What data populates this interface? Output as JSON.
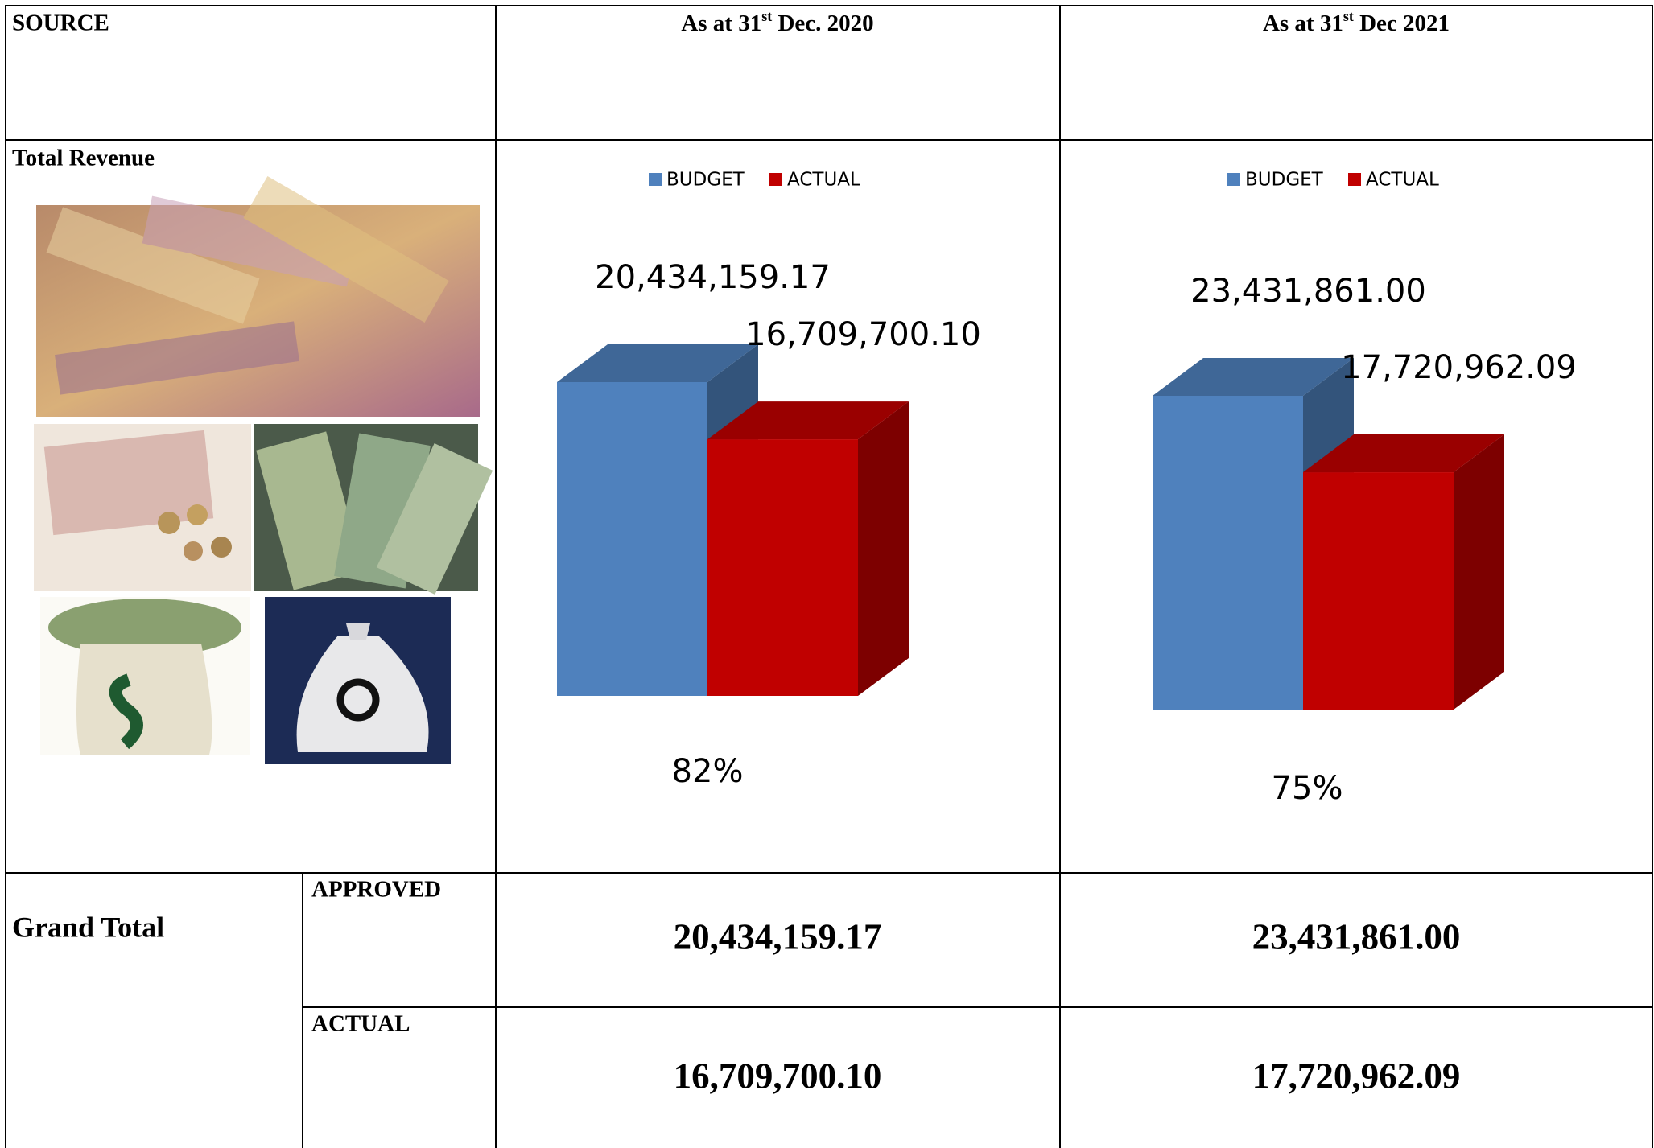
{
  "header": {
    "source": "SOURCE",
    "columns": [
      {
        "prefix": "As at 31",
        "sup": "st",
        "suffix": " Dec. 2020"
      },
      {
        "prefix": "As at 31",
        "sup": "st",
        "suffix": " Dec 2021"
      }
    ]
  },
  "row_label": "Total Revenue",
  "chart_data": [
    {
      "type": "bar",
      "legend": "top",
      "series": [
        {
          "name": "BUDGET",
          "color": "#4f81bd",
          "values": [
            20434159.17
          ],
          "value_labels": [
            "20,434,159.17"
          ]
        },
        {
          "name": "ACTUAL",
          "color": "#c00000",
          "values": [
            16709700.1
          ],
          "value_labels": [
            "16,709,700.10"
          ]
        }
      ],
      "annotation": "82%"
    },
    {
      "type": "bar",
      "legend": "top",
      "series": [
        {
          "name": "BUDGET",
          "color": "#4f81bd",
          "values": [
            23431861.0
          ],
          "value_labels": [
            "23,431,861.00"
          ]
        },
        {
          "name": "ACTUAL",
          "color": "#c00000",
          "values": [
            17720962.09
          ],
          "value_labels": [
            "17,720,962.09"
          ]
        }
      ],
      "annotation": "75%"
    }
  ],
  "grand_total": {
    "label": "Grand Total",
    "rows": [
      {
        "label": "APPROVED",
        "values": [
          "20,434,159.17",
          "23,431,861.00"
        ]
      },
      {
        "label": "ACTUAL",
        "values": [
          "16,709,700.10",
          "17,720,962.09"
        ]
      }
    ]
  }
}
